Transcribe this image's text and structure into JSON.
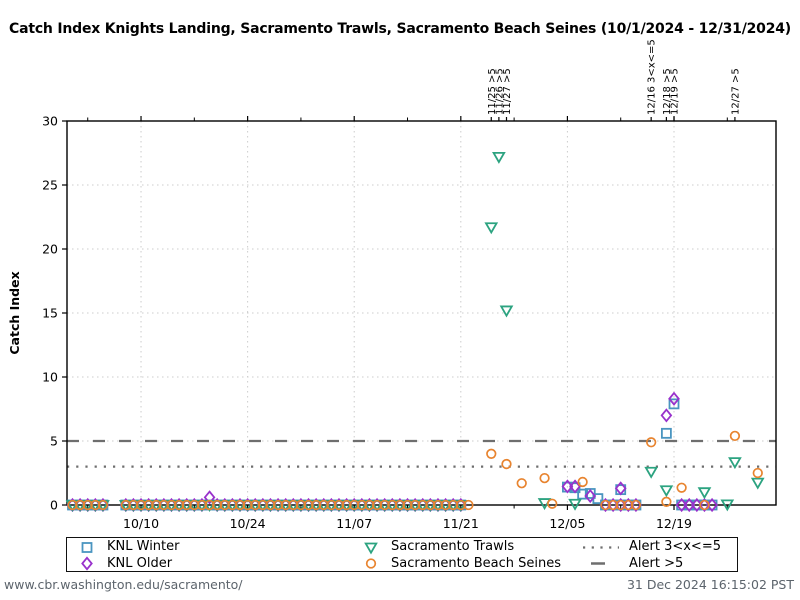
{
  "chart_data": {
    "type": "scatter",
    "title": "Catch Index Knights Landing, Sacramento Trawls, Sacramento Beach Seines (10/1/2024 - 12/31/2024)",
    "ylabel": "Catch Index",
    "ylim": [
      0,
      30
    ],
    "yticks": [
      0,
      5,
      10,
      15,
      20,
      25,
      30
    ],
    "x_start_date": "10/01",
    "x_end_date": "12/31",
    "xticks": [
      {
        "label": "10/10",
        "day": 9
      },
      {
        "label": "10/24",
        "day": 23
      },
      {
        "label": "11/07",
        "day": 37
      },
      {
        "label": "11/21",
        "day": 51
      },
      {
        "label": "12/05",
        "day": 65
      },
      {
        "label": "12/19",
        "day": 79
      }
    ],
    "minor_tick_days": [
      2,
      16,
      30,
      44,
      58,
      72,
      86
    ],
    "grid": true,
    "alert_color": "#6e6e6e",
    "alerts": [
      {
        "label": "Alert 3<x<=5",
        "value": 3,
        "style": "dotted"
      },
      {
        "label": "Alert >5",
        "value": 5,
        "style": "dashed"
      }
    ],
    "annotations": [
      {
        "text": "11/25 >5",
        "day": 55
      },
      {
        "text": "11/26 >5",
        "day": 56
      },
      {
        "text": "11/27 >5",
        "day": 57
      },
      {
        "text": "12/16 3<x<=5",
        "day": 76
      },
      {
        "text": "12/18 >5",
        "day": 78
      },
      {
        "text": "12/19 >5",
        "day": 79
      },
      {
        "text": "12/27 >5",
        "day": 87
      }
    ],
    "series": [
      {
        "name": "KNL Winter",
        "marker": "square",
        "color": "#4a95c0",
        "zero_runs": [
          [
            0,
            4
          ],
          [
            7,
            51
          ],
          [
            70,
            74
          ],
          [
            80,
            84
          ]
        ],
        "points": [
          {
            "d": "12/05",
            "day": 65,
            "v": 1.4
          },
          {
            "d": "12/06",
            "day": 66,
            "v": 1.35
          },
          {
            "d": "12/07",
            "day": 67,
            "v": 0.85
          },
          {
            "d": "12/08",
            "day": 68,
            "v": 0.9
          },
          {
            "d": "12/09",
            "day": 69,
            "v": 0.5
          },
          {
            "d": "12/12",
            "day": 72,
            "v": 1.2
          },
          {
            "d": "12/18",
            "day": 78,
            "v": 5.6
          },
          {
            "d": "12/19",
            "day": 79,
            "v": 7.9
          }
        ]
      },
      {
        "name": "KNL Older",
        "marker": "diamond",
        "color": "#9932cc",
        "zero_runs": [
          [
            0,
            4
          ],
          [
            7,
            17
          ],
          [
            19,
            51
          ],
          [
            70,
            74
          ],
          [
            80,
            84
          ]
        ],
        "points": [
          {
            "d": "10/19",
            "day": 18,
            "v": 0.6
          },
          {
            "d": "12/05",
            "day": 65,
            "v": 1.45
          },
          {
            "d": "12/06",
            "day": 66,
            "v": 1.45
          },
          {
            "d": "12/08",
            "day": 68,
            "v": 0.7
          },
          {
            "d": "12/12",
            "day": 72,
            "v": 1.3
          },
          {
            "d": "12/18",
            "day": 78,
            "v": 7.0
          },
          {
            "d": "12/19",
            "day": 79,
            "v": 8.3
          }
        ]
      },
      {
        "name": "Sacramento Trawls",
        "marker": "triangle-down",
        "color": "#2ca380",
        "zero_runs": [
          [
            0,
            4
          ],
          [
            7,
            51
          ]
        ],
        "points": [
          {
            "d": "11/25",
            "day": 55,
            "v": 21.7
          },
          {
            "d": "11/26",
            "day": 56,
            "v": 27.2
          },
          {
            "d": "11/27",
            "day": 57,
            "v": 15.2
          },
          {
            "d": "12/03",
            "day": 62,
            "v": 0.15
          },
          {
            "d": "12/06",
            "day": 66,
            "v": 0.1
          },
          {
            "d": "12/16",
            "day": 76,
            "v": 2.6
          },
          {
            "d": "12/18",
            "day": 78,
            "v": 1.15
          },
          {
            "d": "12/23",
            "day": 83,
            "v": 1.0
          },
          {
            "d": "12/26",
            "day": 86,
            "v": 0.05
          },
          {
            "d": "12/27",
            "day": 87,
            "v": 3.35
          },
          {
            "d": "12/30",
            "day": 90,
            "v": 1.75
          }
        ]
      },
      {
        "name": "Sacramento Beach Seines",
        "marker": "circle",
        "color": "#e8842f",
        "zero_runs": [
          [
            0,
            4
          ],
          [
            7,
            52
          ],
          [
            70,
            74
          ]
        ],
        "points": [
          {
            "d": "11/25",
            "day": 55,
            "v": 4.0
          },
          {
            "d": "11/27",
            "day": 57,
            "v": 3.2
          },
          {
            "d": "11/29",
            "day": 59,
            "v": 1.7
          },
          {
            "d": "12/03",
            "day": 62,
            "v": 2.1
          },
          {
            "d": "12/04",
            "day": 63,
            "v": 0.1
          },
          {
            "d": "12/07",
            "day": 67,
            "v": 1.8
          },
          {
            "d": "12/16",
            "day": 76,
            "v": 4.9
          },
          {
            "d": "12/18",
            "day": 78,
            "v": 0.25
          },
          {
            "d": "12/20",
            "day": 80,
            "v": 1.35
          },
          {
            "d": "12/23",
            "day": 83,
            "v": 0
          },
          {
            "d": "12/27",
            "day": 87,
            "v": 5.4
          },
          {
            "d": "12/30",
            "day": 90,
            "v": 2.5
          }
        ]
      }
    ],
    "legend": {
      "position": "bottom",
      "entries": [
        {
          "label": "KNL Winter",
          "marker": "square",
          "color": "#4a95c0",
          "col": 0,
          "row": 0
        },
        {
          "label": "KNL Older",
          "marker": "diamond",
          "color": "#9932cc",
          "col": 0,
          "row": 1
        },
        {
          "label": "Sacramento Trawls",
          "marker": "triangle-down",
          "color": "#2ca380",
          "col": 1,
          "row": 0
        },
        {
          "label": "Sacramento Beach Seines",
          "marker": "circle",
          "color": "#e8842f",
          "col": 1,
          "row": 1
        },
        {
          "label": "Alert 3<x<=5",
          "marker": "dotted-line",
          "color": "#6e6e6e",
          "col": 2,
          "row": 0
        },
        {
          "label": "Alert >5",
          "marker": "dashed-line",
          "color": "#6e6e6e",
          "col": 2,
          "row": 1
        }
      ]
    }
  },
  "footer": {
    "url": "www.cbr.washington.edu/sacramento/",
    "timestamp": "31 Dec 2024 16:15:02 PST"
  }
}
